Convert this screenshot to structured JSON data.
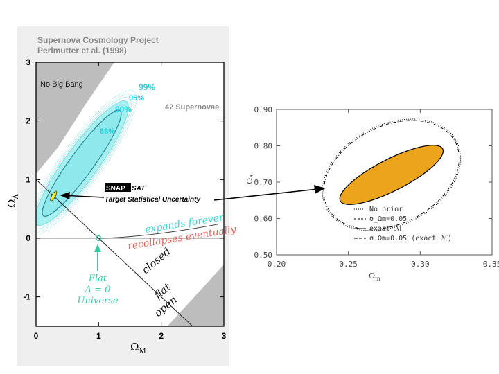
{
  "chart_data": [
    {
      "type": "contour",
      "title": "Supernova Cosmology Project",
      "subtitle": "Perlmutter et al. (1998)",
      "xlabel": "Ω_M",
      "ylabel": "Ω_Λ",
      "xlim": [
        0,
        3
      ],
      "ylim": [
        -1.5,
        3
      ],
      "xticks": [
        "0",
        "1",
        "2",
        "3"
      ],
      "yticks": [
        "-1",
        "0",
        "1",
        "2",
        "3"
      ],
      "sample_label": "42 Supernovae",
      "confidence_levels": [
        "68%",
        "90%",
        "95%",
        "99%"
      ],
      "regions": {
        "no_big_bang": "No Big Bang"
      },
      "boundary_labels": {
        "expands": "expands forever",
        "recollapses": "recollapses eventually",
        "closed": "closed",
        "flat": "flat",
        "open": "open"
      },
      "flat_universe_label": [
        "Flat",
        "Λ = 0",
        "Universe"
      ],
      "target": {
        "logo_part1": "SNAP",
        "logo_part2": "SAT",
        "label": "Target Statistical Uncertainty",
        "omega_m": 0.28,
        "omega_lambda": 0.72
      }
    },
    {
      "type": "contour",
      "xlabel": "Ω_m",
      "ylabel": "Ω_Λ",
      "xlim": [
        0.2,
        0.35
      ],
      "ylim": [
        0.5,
        0.9
      ],
      "xticks": [
        "0.20",
        "0.25",
        "0.30",
        "0.35"
      ],
      "yticks": [
        "0.50",
        "0.60",
        "0.70",
        "0.80",
        "0.90"
      ],
      "legend": [
        {
          "style": "dotted",
          "label": "No prior"
        },
        {
          "style": "short-dash",
          "label": "σ_Ωm=0.05"
        },
        {
          "style": "solid",
          "label": "exact ℳ"
        },
        {
          "style": "dash",
          "label": "σ_Ωm=0.05 (exact ℳ)"
        }
      ],
      "ellipses": [
        {
          "style": "dotted",
          "center": [
            0.28,
            0.72
          ],
          "semi_major": 0.05,
          "semi_minor": 0.034
        },
        {
          "style": "dash-dot",
          "center": [
            0.28,
            0.72
          ],
          "semi_major": 0.05,
          "semi_minor": 0.034
        },
        {
          "style": "filled",
          "color": "#eba41c",
          "center": [
            0.28,
            0.72
          ],
          "semi_major": 0.04,
          "semi_minor": 0.011
        }
      ]
    }
  ],
  "colors": {
    "gray_region": "#bdbdbd",
    "contour_fill": "#a6f0f2",
    "contour_line": "#2c8a94",
    "cyan_text": "#2ad0dc",
    "expands_text": "#3ad4dc",
    "recollapses_text": "#e0645a",
    "flat_label": "#3ccaa6",
    "ellipse_fill": "#eba41c"
  }
}
